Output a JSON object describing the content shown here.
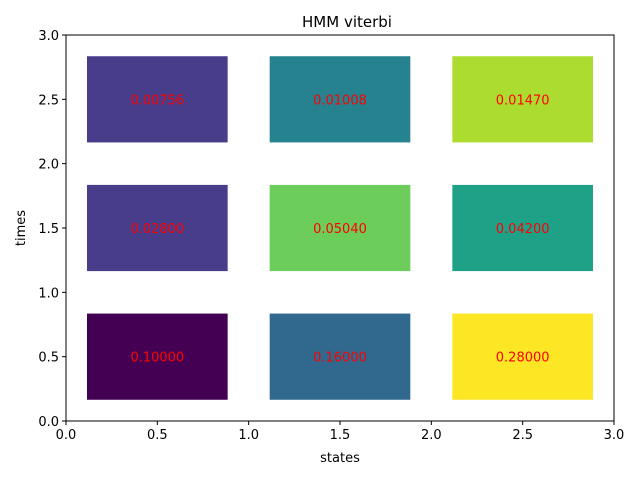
{
  "chart_data": {
    "type": "heatmap",
    "title": "HMM viterbi",
    "xlabel": "states",
    "ylabel": "times",
    "xlim": [
      0,
      3
    ],
    "ylim": [
      0,
      3
    ],
    "xticks": [
      "0.0",
      "0.5",
      "1.0",
      "1.5",
      "2.0",
      "2.5",
      "3.0"
    ],
    "yticks": [
      "0.0",
      "0.5",
      "1.0",
      "1.5",
      "2.0",
      "2.5",
      "3.0"
    ],
    "grid": false,
    "label_color": "#ff0000",
    "cells": [
      {
        "x": 0.5,
        "y": 0.5,
        "value": 0.1,
        "label": "0.10000",
        "color": "#440154"
      },
      {
        "x": 1.5,
        "y": 0.5,
        "value": 0.16,
        "label": "0.16000",
        "color": "#31688e"
      },
      {
        "x": 2.5,
        "y": 0.5,
        "value": 0.28,
        "label": "0.28000",
        "color": "#fde725"
      },
      {
        "x": 0.5,
        "y": 1.5,
        "value": 0.028,
        "label": "0.02800",
        "color": "#483d8b"
      },
      {
        "x": 1.5,
        "y": 1.5,
        "value": 0.0504,
        "label": "0.05040",
        "color": "#6ccd5a"
      },
      {
        "x": 2.5,
        "y": 1.5,
        "value": 0.042,
        "label": "0.04200",
        "color": "#1fa188"
      },
      {
        "x": 0.5,
        "y": 2.5,
        "value": 0.00756,
        "label": "0.00756",
        "color": "#483d8b"
      },
      {
        "x": 1.5,
        "y": 2.5,
        "value": 0.01008,
        "label": "0.01008",
        "color": "#26828e"
      },
      {
        "x": 2.5,
        "y": 2.5,
        "value": 0.0147,
        "label": "0.01470",
        "color": "#addc30"
      }
    ]
  }
}
